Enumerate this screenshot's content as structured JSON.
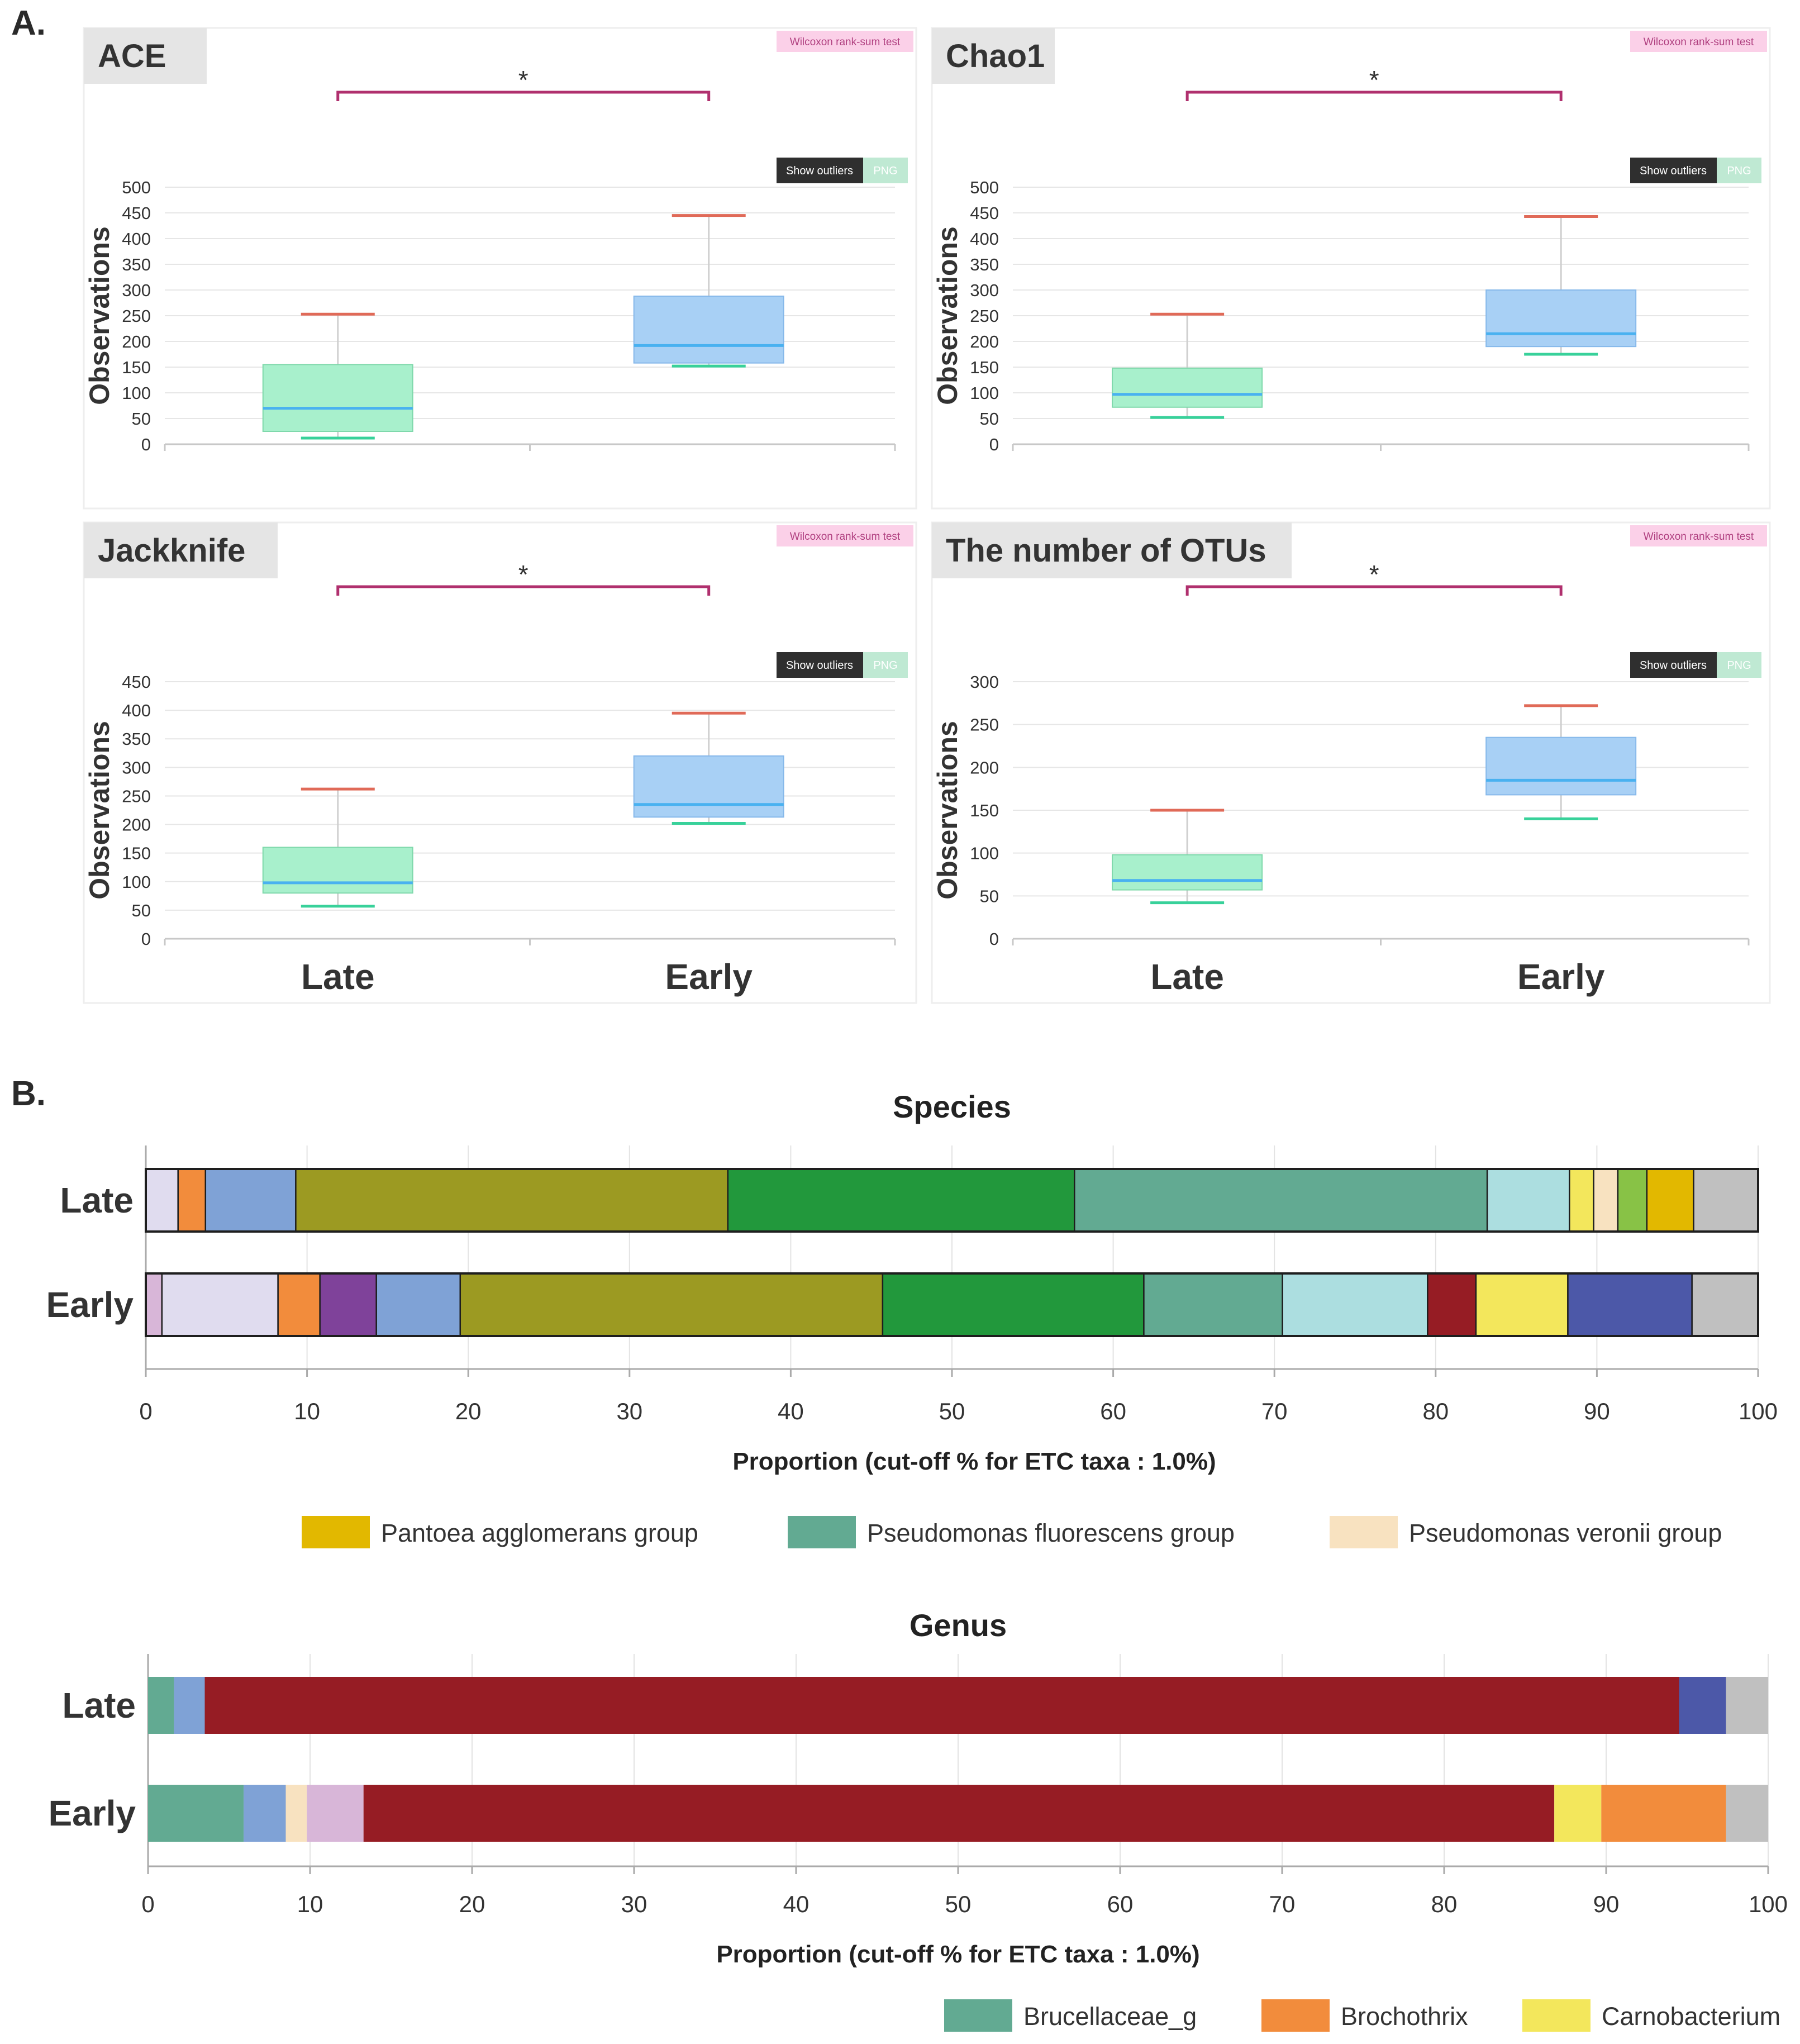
{
  "section_a_label": "A.",
  "section_b_label": "B.",
  "colors": {
    "late_box": "#a8f0cc",
    "early_box": "#a8d0f5",
    "median": "#49b1f0",
    "upper_whisker": "#e06a58",
    "late_lower_whisker": "#38d19a",
    "significance": "#b0306e",
    "title_tab": "#e5e5e5",
    "test_tag": "#fbd0e8",
    "outlier_btn": "#2f2f2f",
    "png_btn": "#bfe9d3"
  },
  "boxplot_common": {
    "test_label": "Wilcoxon rank-sum test",
    "show_outliers_label": "Show outliers",
    "png_label": "PNG",
    "ylabel": "Observations",
    "significance_mark": "*",
    "categories": [
      "Late",
      "Early"
    ]
  },
  "chart_data": [
    {
      "type": "boxplot",
      "title": "ACE",
      "ylim": [
        0,
        500
      ],
      "yticks": [
        0,
        50,
        100,
        150,
        200,
        250,
        300,
        350,
        400,
        450,
        500
      ],
      "groups": [
        {
          "name": "Late",
          "min": 12,
          "q1": 25,
          "median": 70,
          "q3": 155,
          "max": 253
        },
        {
          "name": "Early",
          "min": 152,
          "q1": 158,
          "median": 192,
          "q3": 288,
          "max": 445
        }
      ]
    },
    {
      "type": "boxplot",
      "title": "Chao1",
      "ylim": [
        0,
        500
      ],
      "yticks": [
        0,
        50,
        100,
        150,
        200,
        250,
        300,
        350,
        400,
        450,
        500
      ],
      "groups": [
        {
          "name": "Late",
          "min": 52,
          "q1": 72,
          "median": 97,
          "q3": 148,
          "max": 253
        },
        {
          "name": "Early",
          "min": 175,
          "q1": 190,
          "median": 215,
          "q3": 300,
          "max": 443
        }
      ]
    },
    {
      "type": "boxplot",
      "title": "Jackknife",
      "ylim": [
        0,
        450
      ],
      "yticks": [
        0,
        50,
        100,
        150,
        200,
        250,
        300,
        350,
        400,
        450
      ],
      "groups": [
        {
          "name": "Late",
          "min": 57,
          "q1": 80,
          "median": 98,
          "q3": 160,
          "max": 262
        },
        {
          "name": "Early",
          "min": 202,
          "q1": 213,
          "median": 235,
          "q3": 320,
          "max": 395
        }
      ]
    },
    {
      "type": "boxplot",
      "title": "The number of OTUs",
      "ylim": [
        0,
        300
      ],
      "yticks": [
        0,
        50,
        100,
        150,
        200,
        250,
        300
      ],
      "groups": [
        {
          "name": "Late",
          "min": 42,
          "q1": 57,
          "median": 68,
          "q3": 98,
          "max": 150
        },
        {
          "name": "Early",
          "min": 140,
          "q1": 168,
          "median": 185,
          "q3": 235,
          "max": 272
        }
      ]
    },
    {
      "type": "stacked-bar",
      "title": "Species",
      "xlabel": "Proportion (cut-off % for ETC taxa : 1.0%)",
      "xlim": [
        0,
        100
      ],
      "xticks": [
        0,
        10,
        20,
        30,
        40,
        50,
        60,
        70,
        80,
        90,
        100
      ],
      "rows": [
        {
          "name": "Late",
          "segments": [
            {
              "value": 2.0,
              "color": "#e0dcef"
            },
            {
              "value": 1.7,
              "color": "#f28c3c"
            },
            {
              "value": 5.6,
              "color": "#7fa2d6"
            },
            {
              "value": 26.8,
              "color": "#9c9a22"
            },
            {
              "value": 21.5,
              "color": "#22983c"
            },
            {
              "value": 25.6,
              "color": "#62aa92"
            },
            {
              "value": 5.1,
              "color": "#acdee0"
            },
            {
              "value": 1.5,
              "color": "#f3e75c"
            },
            {
              "value": 1.5,
              "color": "#f8e2c0"
            },
            {
              "value": 1.8,
              "color": "#88c246"
            },
            {
              "value": 2.9,
              "color": "#e2b800"
            },
            {
              "value": 4.0,
              "color": "#c0c0c0"
            }
          ]
        },
        {
          "name": "Early",
          "segments": [
            {
              "value": 1.0,
              "color": "#d8b6d8"
            },
            {
              "value": 7.2,
              "color": "#e0dcef"
            },
            {
              "value": 2.6,
              "color": "#f28c3c"
            },
            {
              "value": 3.5,
              "color": "#7f429a"
            },
            {
              "value": 5.2,
              "color": "#7fa2d6"
            },
            {
              "value": 26.2,
              "color": "#9c9a22"
            },
            {
              "value": 16.2,
              "color": "#22983c"
            },
            {
              "value": 8.6,
              "color": "#62aa92"
            },
            {
              "value": 9.0,
              "color": "#acdee0"
            },
            {
              "value": 3.0,
              "color": "#961c24"
            },
            {
              "value": 5.7,
              "color": "#f3e75c"
            },
            {
              "value": 7.7,
              "color": "#4c58a8"
            },
            {
              "value": 4.1,
              "color": "#c0c0c0"
            }
          ]
        }
      ],
      "legend": [
        {
          "label": "Pantoea agglomerans group",
          "color": "#e2b800"
        },
        {
          "label": "Pseudomonas fluorescens group",
          "color": "#62aa92"
        },
        {
          "label": "Pseudomonas veronii group",
          "color": "#f8e2c0"
        }
      ]
    },
    {
      "type": "stacked-bar",
      "title": "Genus",
      "xlabel": "Proportion (cut-off % for ETC taxa : 1.0%)",
      "xlim": [
        0,
        100
      ],
      "xticks": [
        0,
        10,
        20,
        30,
        40,
        50,
        60,
        70,
        80,
        90,
        100
      ],
      "rows": [
        {
          "name": "Late",
          "segments": [
            {
              "value": 1.6,
              "color": "#62aa92"
            },
            {
              "value": 1.9,
              "color": "#7fa2d6"
            },
            {
              "value": 91.0,
              "color": "#961c24"
            },
            {
              "value": 2.9,
              "color": "#4c58a8"
            },
            {
              "value": 2.6,
              "color": "#c0c0c0"
            }
          ]
        },
        {
          "name": "Early",
          "segments": [
            {
              "value": 5.9,
              "color": "#62aa92"
            },
            {
              "value": 2.6,
              "color": "#7fa2d6"
            },
            {
              "value": 1.3,
              "color": "#f8e2c0"
            },
            {
              "value": 3.5,
              "color": "#d8b6d8"
            },
            {
              "value": 73.5,
              "color": "#961c24"
            },
            {
              "value": 2.9,
              "color": "#f3e75c"
            },
            {
              "value": 7.7,
              "color": "#f28c3c"
            },
            {
              "value": 2.6,
              "color": "#c0c0c0"
            }
          ]
        }
      ],
      "legend": [
        {
          "label": "Brucellaceae_g",
          "color": "#62aa92"
        },
        {
          "label": "Brochothrix",
          "color": "#f28c3c"
        },
        {
          "label": "Carnobacterium",
          "color": "#f3e75c"
        }
      ]
    }
  ]
}
